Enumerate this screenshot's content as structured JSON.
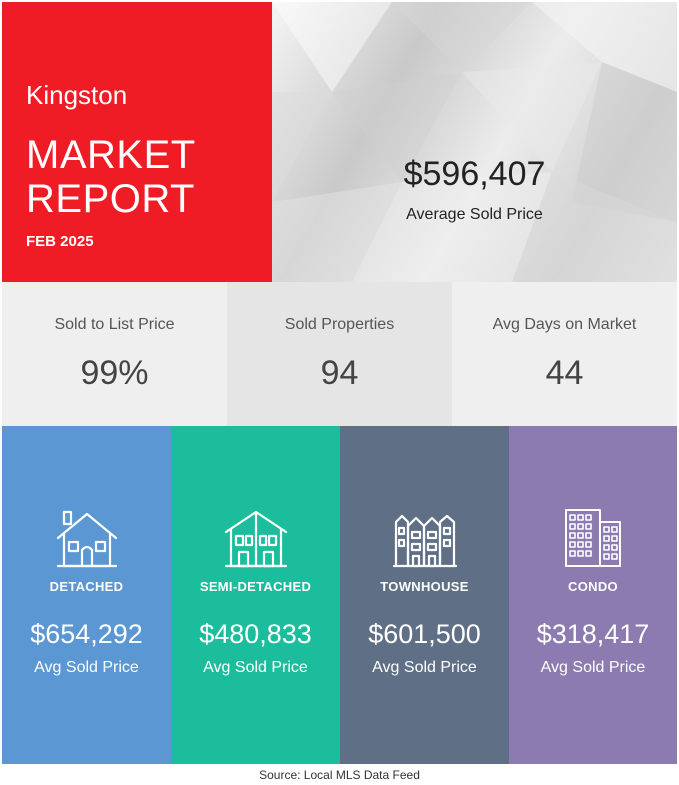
{
  "header": {
    "city": "Kingston",
    "title_line1": "MARKET",
    "title_line2": "REPORT",
    "date": "FEB 2025",
    "avg_sold_price": "$596,407",
    "avg_sold_price_label": "Average Sold Price"
  },
  "stats": [
    {
      "label": "Sold to List Price",
      "value": "99%"
    },
    {
      "label": "Sold Properties",
      "value": "94"
    },
    {
      "label": "Avg Days on Market",
      "value": "44"
    }
  ],
  "property_types": [
    {
      "name": "DETACHED",
      "price": "$654,292",
      "label": "Avg Sold Price",
      "icon": "detached-house-icon",
      "color": "#5b97d3"
    },
    {
      "name": "SEMI-DETACHED",
      "price": "$480,833",
      "label": "Avg Sold Price",
      "icon": "semi-detached-house-icon",
      "color": "#1cbd9c"
    },
    {
      "name": "TOWNHOUSE",
      "price": "$601,500",
      "label": "Avg Sold Price",
      "icon": "townhouse-icon",
      "color": "#5f6f86"
    },
    {
      "name": "CONDO",
      "price": "$318,417",
      "label": "Avg Sold Price",
      "icon": "condo-building-icon",
      "color": "#8b7bb0"
    }
  ],
  "footer": {
    "source": "Source: Local MLS Data Feed"
  },
  "colors": {
    "accent_red": "#ef1c25"
  }
}
